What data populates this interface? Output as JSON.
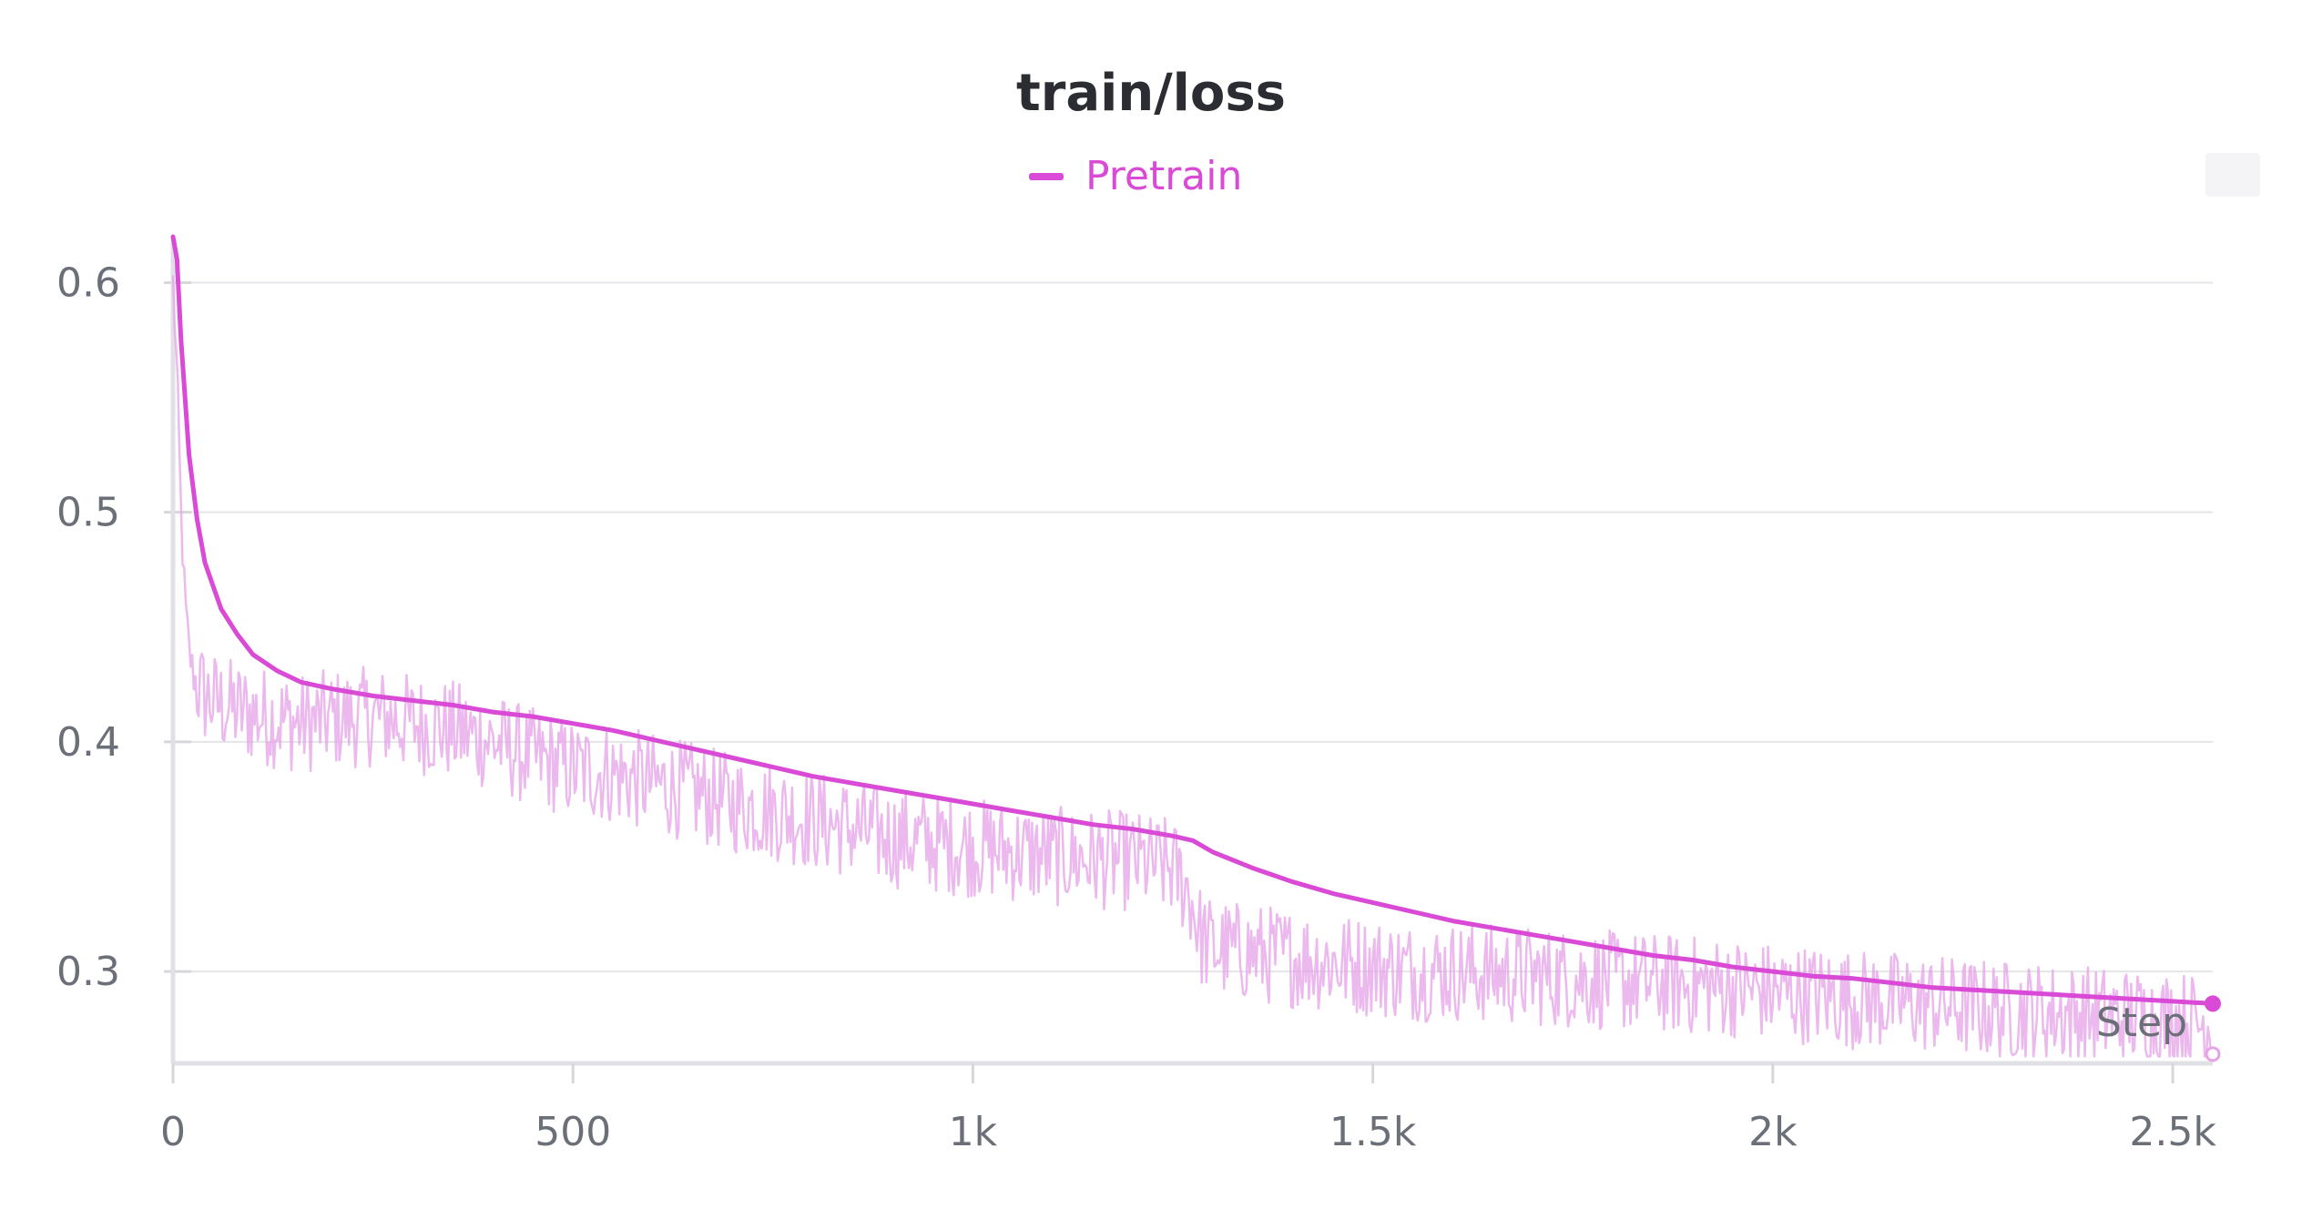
{
  "chart_data": {
    "type": "line",
    "title": "train/loss",
    "xlabel": "Step",
    "ylabel": "",
    "xlim": [
      0,
      2550
    ],
    "ylim": [
      0.26,
      0.62
    ],
    "grid": true,
    "legend_position": "top-center",
    "x_ticks": [
      {
        "value": 0,
        "label": "0"
      },
      {
        "value": 500,
        "label": "500"
      },
      {
        "value": 1000,
        "label": "1k"
      },
      {
        "value": 1500,
        "label": "1.5k"
      },
      {
        "value": 2000,
        "label": "2k"
      },
      {
        "value": 2500,
        "label": "2.5k"
      }
    ],
    "y_ticks": [
      {
        "value": 0.3,
        "label": "0.3"
      },
      {
        "value": 0.4,
        "label": "0.4"
      },
      {
        "value": 0.5,
        "label": "0.5"
      },
      {
        "value": 0.6,
        "label": "0.6"
      }
    ],
    "series": [
      {
        "name": "Pretrain",
        "color": "#d94ad6",
        "raw_color": "#e6a1e8",
        "smoothed": {
          "x": [
            0,
            5,
            10,
            20,
            30,
            40,
            60,
            80,
            100,
            130,
            160,
            200,
            250,
            300,
            350,
            400,
            450,
            500,
            550,
            600,
            650,
            700,
            750,
            800,
            850,
            900,
            950,
            1000,
            1050,
            1100,
            1150,
            1200,
            1250,
            1275,
            1300,
            1350,
            1400,
            1450,
            1500,
            1550,
            1600,
            1650,
            1700,
            1750,
            1800,
            1850,
            1900,
            1950,
            2000,
            2050,
            2100,
            2150,
            2200,
            2250,
            2300,
            2350,
            2400,
            2450,
            2500,
            2550
          ],
          "y": [
            0.62,
            0.61,
            0.575,
            0.525,
            0.497,
            0.478,
            0.458,
            0.447,
            0.438,
            0.431,
            0.426,
            0.423,
            0.42,
            0.418,
            0.416,
            0.413,
            0.411,
            0.408,
            0.405,
            0.401,
            0.397,
            0.393,
            0.389,
            0.385,
            0.382,
            0.379,
            0.376,
            0.373,
            0.37,
            0.367,
            0.364,
            0.362,
            0.359,
            0.357,
            0.352,
            0.345,
            0.339,
            0.334,
            0.33,
            0.326,
            0.322,
            0.319,
            0.316,
            0.313,
            0.31,
            0.307,
            0.305,
            0.302,
            0.3,
            0.298,
            0.297,
            0.295,
            0.293,
            0.292,
            0.291,
            0.29,
            0.289,
            0.288,
            0.287,
            0.286
          ]
        },
        "raw": {
          "x": [
            0,
            5,
            10,
            15,
            20,
            25,
            30,
            40,
            50,
            60,
            80,
            100,
            130,
            160,
            200,
            250,
            300,
            350,
            400,
            450,
            500,
            550,
            600,
            650,
            700,
            750,
            800,
            850,
            900,
            950,
            1000,
            1050,
            1100,
            1150,
            1200,
            1250,
            1270,
            1285,
            1300,
            1350,
            1400,
            1450,
            1500,
            1550,
            1600,
            1650,
            1700,
            1750,
            1800,
            1850,
            1900,
            1950,
            2000,
            2050,
            2100,
            2150,
            2200,
            2250,
            2300,
            2350,
            2400,
            2450,
            2500,
            2550
          ],
          "y": [
            0.6,
            0.56,
            0.5,
            0.46,
            0.44,
            0.43,
            0.425,
            0.42,
            0.418,
            0.416,
            0.414,
            0.412,
            0.41,
            0.408,
            0.41,
            0.411,
            0.408,
            0.405,
            0.4,
            0.393,
            0.388,
            0.386,
            0.382,
            0.378,
            0.373,
            0.37,
            0.366,
            0.362,
            0.358,
            0.356,
            0.354,
            0.352,
            0.35,
            0.349,
            0.348,
            0.345,
            0.335,
            0.315,
            0.31,
            0.308,
            0.306,
            0.304,
            0.302,
            0.3,
            0.3,
            0.299,
            0.298,
            0.297,
            0.296,
            0.295,
            0.294,
            0.293,
            0.291,
            0.29,
            0.288,
            0.287,
            0.286,
            0.284,
            0.283,
            0.282,
            0.281,
            0.28,
            0.279,
            0.277
          ]
        }
      }
    ]
  }
}
